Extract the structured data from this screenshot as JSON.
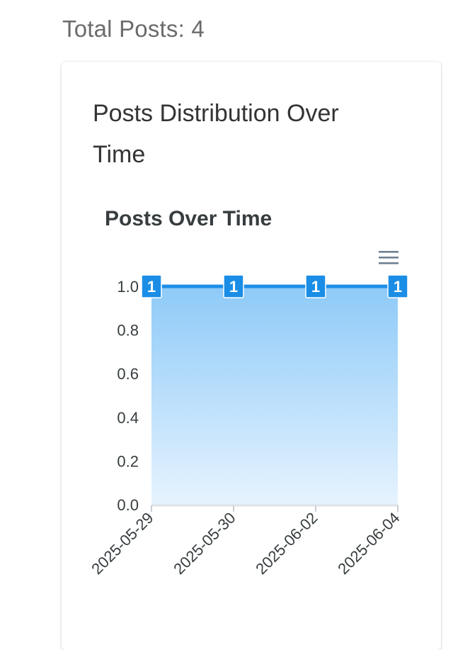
{
  "header": {
    "total_posts": "Total Posts: 4"
  },
  "card": {
    "title": "Posts Distribution Over Time"
  },
  "toolbar": {
    "menu_icon": "hamburger-menu-icon"
  },
  "colors": {
    "series": "#1e8fe8",
    "area_top": "#8ecaf8",
    "area_bottom": "#e6f3fe",
    "label_bg": "#1a8ee6",
    "grid": "#d8dde3"
  },
  "chart_data": {
    "type": "area",
    "title": "Posts Over Time",
    "xlabel": "",
    "ylabel": "",
    "categories": [
      "2025-05-29",
      "2025-05-30",
      "2025-06-02",
      "2025-06-04"
    ],
    "series": [
      {
        "values": [
          1,
          1,
          1,
          1
        ]
      }
    ],
    "ylim": [
      0,
      1
    ],
    "yticks": [
      "0.0",
      "0.2",
      "0.4",
      "0.6",
      "0.8",
      "1.0"
    ],
    "data_labels": true,
    "grid": true
  }
}
